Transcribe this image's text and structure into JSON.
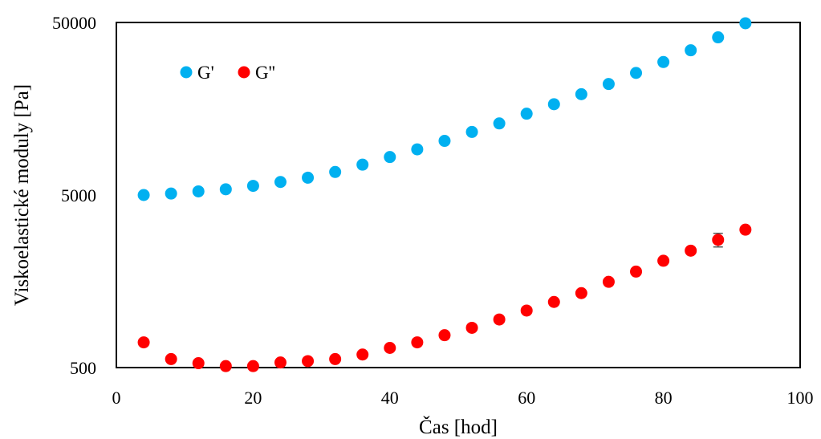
{
  "chart_data": {
    "type": "scatter",
    "xlabel": "Čas [hod]",
    "ylabel": "Viskoelastické moduly [Pa]",
    "xlim": [
      0,
      100
    ],
    "ylim": [
      500,
      50000
    ],
    "yscale": "log",
    "x_ticks": [
      "0",
      "20",
      "40",
      "60",
      "80",
      "100"
    ],
    "y_ticks": [
      "500",
      "5000",
      "50000"
    ],
    "legend_position": "top-left",
    "grid": false,
    "x": [
      4,
      8,
      12,
      16,
      20,
      24,
      28,
      32,
      36,
      40,
      44,
      48,
      52,
      56,
      60,
      64,
      68,
      72,
      76,
      80,
      84,
      88,
      92
    ],
    "series": [
      {
        "name": "G'",
        "color": "#00b0f0",
        "values": [
          5000,
          5100,
          5250,
          5400,
          5650,
          5950,
          6300,
          6800,
          7500,
          8300,
          9200,
          10300,
          11600,
          13000,
          14800,
          16800,
          19200,
          22000,
          25500,
          29500,
          34500,
          41000,
          49500
        ]
      },
      {
        "name": "G''",
        "color": "#ff0000",
        "values": [
          700,
          560,
          530,
          510,
          510,
          535,
          545,
          560,
          595,
          650,
          700,
          770,
          850,
          950,
          1070,
          1200,
          1350,
          1570,
          1800,
          2080,
          2380,
          2750,
          3150
        ],
        "error": [
          0,
          0,
          0,
          0,
          0,
          0,
          0,
          0,
          0,
          0,
          0,
          0,
          0,
          0,
          0,
          0,
          0,
          0,
          0,
          0,
          0,
          250,
          0
        ]
      }
    ]
  }
}
